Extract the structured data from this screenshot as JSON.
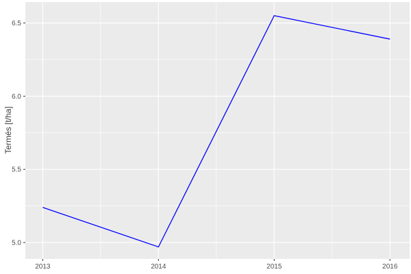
{
  "chart_data": {
    "type": "line",
    "title": "",
    "xlabel": "",
    "ylabel": "Termés [t/ha]",
    "x": [
      2013,
      2014,
      2015,
      2016
    ],
    "series": [
      {
        "name": "Termés",
        "color": "#0000FF",
        "values": [
          5.24,
          4.97,
          6.55,
          6.39
        ]
      }
    ],
    "x_ticks": {
      "values": [
        2013,
        2014,
        2015,
        2016
      ],
      "labels": [
        "2013",
        "2014",
        "2015",
        "2016"
      ]
    },
    "y_ticks": {
      "values": [
        5.0,
        5.5,
        6.0,
        6.5
      ],
      "labels": [
        "5.0",
        "5.5",
        "6.0",
        "6.5"
      ]
    },
    "x_range": [
      2012.85,
      2016.17
    ],
    "y_range": [
      4.888,
      6.643
    ],
    "grid": {
      "major": true,
      "minor": true
    },
    "legend": "none",
    "style": {
      "outer_bg": "#FFFFFF",
      "panel_bg": "#EBEBEB",
      "grid_major_color": "#FFFFFF",
      "grid_minor_color": "#FFFFFF",
      "line_width": 1.3,
      "tick_mark_color": "#333333",
      "tick_label_color": "#4D4D4D",
      "axis_title_color": "#404040"
    }
  }
}
